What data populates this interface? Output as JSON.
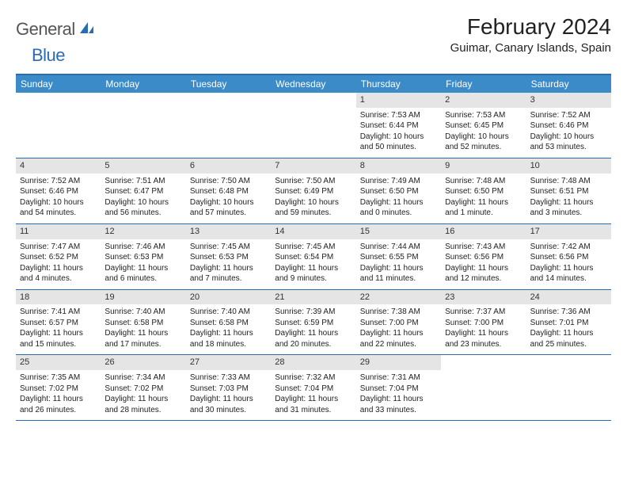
{
  "logo": {
    "part1": "General",
    "part2": "Blue"
  },
  "title": "February 2024",
  "location": "Guimar, Canary Islands, Spain",
  "colors": {
    "header_bg": "#3b8bc9",
    "border": "#2b6cb0",
    "daynum_bg": "#e5e5e5",
    "logo_gray": "#555555",
    "logo_blue": "#2b6cb0"
  },
  "day_names": [
    "Sunday",
    "Monday",
    "Tuesday",
    "Wednesday",
    "Thursday",
    "Friday",
    "Saturday"
  ],
  "weeks": [
    [
      {
        "blank": true
      },
      {
        "blank": true
      },
      {
        "blank": true
      },
      {
        "blank": true
      },
      {
        "n": "1",
        "sunrise": "7:53 AM",
        "sunset": "6:44 PM",
        "daylight": "10 hours and 50 minutes."
      },
      {
        "n": "2",
        "sunrise": "7:53 AM",
        "sunset": "6:45 PM",
        "daylight": "10 hours and 52 minutes."
      },
      {
        "n": "3",
        "sunrise": "7:52 AM",
        "sunset": "6:46 PM",
        "daylight": "10 hours and 53 minutes."
      }
    ],
    [
      {
        "n": "4",
        "sunrise": "7:52 AM",
        "sunset": "6:46 PM",
        "daylight": "10 hours and 54 minutes."
      },
      {
        "n": "5",
        "sunrise": "7:51 AM",
        "sunset": "6:47 PM",
        "daylight": "10 hours and 56 minutes."
      },
      {
        "n": "6",
        "sunrise": "7:50 AM",
        "sunset": "6:48 PM",
        "daylight": "10 hours and 57 minutes."
      },
      {
        "n": "7",
        "sunrise": "7:50 AM",
        "sunset": "6:49 PM",
        "daylight": "10 hours and 59 minutes."
      },
      {
        "n": "8",
        "sunrise": "7:49 AM",
        "sunset": "6:50 PM",
        "daylight": "11 hours and 0 minutes."
      },
      {
        "n": "9",
        "sunrise": "7:48 AM",
        "sunset": "6:50 PM",
        "daylight": "11 hours and 1 minute."
      },
      {
        "n": "10",
        "sunrise": "7:48 AM",
        "sunset": "6:51 PM",
        "daylight": "11 hours and 3 minutes."
      }
    ],
    [
      {
        "n": "11",
        "sunrise": "7:47 AM",
        "sunset": "6:52 PM",
        "daylight": "11 hours and 4 minutes."
      },
      {
        "n": "12",
        "sunrise": "7:46 AM",
        "sunset": "6:53 PM",
        "daylight": "11 hours and 6 minutes."
      },
      {
        "n": "13",
        "sunrise": "7:45 AM",
        "sunset": "6:53 PM",
        "daylight": "11 hours and 7 minutes."
      },
      {
        "n": "14",
        "sunrise": "7:45 AM",
        "sunset": "6:54 PM",
        "daylight": "11 hours and 9 minutes."
      },
      {
        "n": "15",
        "sunrise": "7:44 AM",
        "sunset": "6:55 PM",
        "daylight": "11 hours and 11 minutes."
      },
      {
        "n": "16",
        "sunrise": "7:43 AM",
        "sunset": "6:56 PM",
        "daylight": "11 hours and 12 minutes."
      },
      {
        "n": "17",
        "sunrise": "7:42 AM",
        "sunset": "6:56 PM",
        "daylight": "11 hours and 14 minutes."
      }
    ],
    [
      {
        "n": "18",
        "sunrise": "7:41 AM",
        "sunset": "6:57 PM",
        "daylight": "11 hours and 15 minutes."
      },
      {
        "n": "19",
        "sunrise": "7:40 AM",
        "sunset": "6:58 PM",
        "daylight": "11 hours and 17 minutes."
      },
      {
        "n": "20",
        "sunrise": "7:40 AM",
        "sunset": "6:58 PM",
        "daylight": "11 hours and 18 minutes."
      },
      {
        "n": "21",
        "sunrise": "7:39 AM",
        "sunset": "6:59 PM",
        "daylight": "11 hours and 20 minutes."
      },
      {
        "n": "22",
        "sunrise": "7:38 AM",
        "sunset": "7:00 PM",
        "daylight": "11 hours and 22 minutes."
      },
      {
        "n": "23",
        "sunrise": "7:37 AM",
        "sunset": "7:00 PM",
        "daylight": "11 hours and 23 minutes."
      },
      {
        "n": "24",
        "sunrise": "7:36 AM",
        "sunset": "7:01 PM",
        "daylight": "11 hours and 25 minutes."
      }
    ],
    [
      {
        "n": "25",
        "sunrise": "7:35 AM",
        "sunset": "7:02 PM",
        "daylight": "11 hours and 26 minutes."
      },
      {
        "n": "26",
        "sunrise": "7:34 AM",
        "sunset": "7:02 PM",
        "daylight": "11 hours and 28 minutes."
      },
      {
        "n": "27",
        "sunrise": "7:33 AM",
        "sunset": "7:03 PM",
        "daylight": "11 hours and 30 minutes."
      },
      {
        "n": "28",
        "sunrise": "7:32 AM",
        "sunset": "7:04 PM",
        "daylight": "11 hours and 31 minutes."
      },
      {
        "n": "29",
        "sunrise": "7:31 AM",
        "sunset": "7:04 PM",
        "daylight": "11 hours and 33 minutes."
      },
      {
        "blank": true
      },
      {
        "blank": true
      }
    ]
  ],
  "labels": {
    "sunrise": "Sunrise:",
    "sunset": "Sunset:",
    "daylight": "Daylight:"
  }
}
